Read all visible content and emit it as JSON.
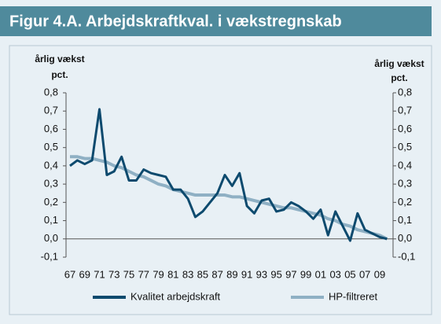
{
  "header": {
    "title": "Figur 4.A. Arbejdskraftkval. i vækstregnskab"
  },
  "chart_data": {
    "type": "line",
    "ylabel": "årlig vækst",
    "ylabel_unit": "pct.",
    "y2label": "årlig vækst",
    "y2label_unit": "pct.",
    "categories": [
      "67",
      null,
      "69",
      null,
      "71",
      null,
      "73",
      null,
      "75",
      null,
      "77",
      null,
      "79",
      null,
      "81",
      null,
      "83",
      null,
      "85",
      null,
      "87",
      null,
      "89",
      null,
      "91",
      null,
      "93",
      null,
      "95",
      null,
      "97",
      null,
      "99",
      null,
      "01",
      null,
      "03",
      null,
      "05",
      null,
      "07",
      null,
      "09",
      null
    ],
    "series": [
      {
        "name": "Kvalitet arbejdskraft",
        "color": "#0d4a6e",
        "values": [
          0.4,
          0.43,
          0.41,
          0.43,
          0.71,
          0.35,
          0.37,
          0.45,
          0.32,
          0.32,
          0.38,
          0.36,
          0.35,
          0.34,
          0.27,
          0.27,
          0.22,
          0.12,
          0.15,
          0.2,
          0.25,
          0.35,
          0.29,
          0.36,
          0.18,
          0.14,
          0.21,
          0.22,
          0.15,
          0.16,
          0.2,
          0.18,
          0.15,
          0.11,
          0.16,
          0.02,
          0.15,
          0.07,
          -0.01,
          0.14,
          0.05,
          0.03,
          0.01,
          0.0
        ]
      },
      {
        "name": "HP-filtreret",
        "color": "#8fb0c4",
        "values": [
          0.45,
          0.45,
          0.44,
          0.44,
          0.43,
          0.42,
          0.4,
          0.39,
          0.37,
          0.35,
          0.34,
          0.32,
          0.3,
          0.29,
          0.27,
          0.26,
          0.25,
          0.24,
          0.24,
          0.24,
          0.24,
          0.24,
          0.23,
          0.23,
          0.22,
          0.21,
          0.2,
          0.19,
          0.18,
          0.17,
          0.17,
          0.16,
          0.15,
          0.14,
          0.13,
          0.11,
          0.1,
          0.08,
          0.07,
          0.05,
          0.04,
          0.03,
          0.02,
          0.0
        ]
      }
    ],
    "ylim": [
      -0.1,
      0.8
    ],
    "yticks": [
      {
        "value": -0.1,
        "label": "-0,1"
      },
      {
        "value": 0,
        "label": "0,0"
      },
      {
        "value": 0.1,
        "label": "0,1"
      },
      {
        "value": 0.2,
        "label": "0,2"
      },
      {
        "value": 0.3,
        "label": "0,3"
      },
      {
        "value": 0.4,
        "label": "0,4"
      },
      {
        "value": 0.5,
        "label": "0,5"
      },
      {
        "value": 0.6,
        "label": "0,6"
      },
      {
        "value": 0.7,
        "label": "0,7"
      },
      {
        "value": 0.8,
        "label": "0,8"
      }
    ],
    "y2lim": [
      -0.1,
      0.8
    ],
    "y2ticks": [
      {
        "value": -0.1,
        "label": "-0,1"
      },
      {
        "value": 0,
        "label": "0,0"
      },
      {
        "value": 0.1,
        "label": "0,1"
      },
      {
        "value": 0.2,
        "label": "0,2"
      },
      {
        "value": 0.3,
        "label": "0,3"
      },
      {
        "value": 0.4,
        "label": "0,4"
      },
      {
        "value": 0.5,
        "label": "0,5"
      },
      {
        "value": 0.6,
        "label": "0,6"
      },
      {
        "value": 0.7,
        "label": "0,7"
      },
      {
        "value": 0.8,
        "label": "0,8"
      }
    ],
    "legend": "bottom"
  }
}
